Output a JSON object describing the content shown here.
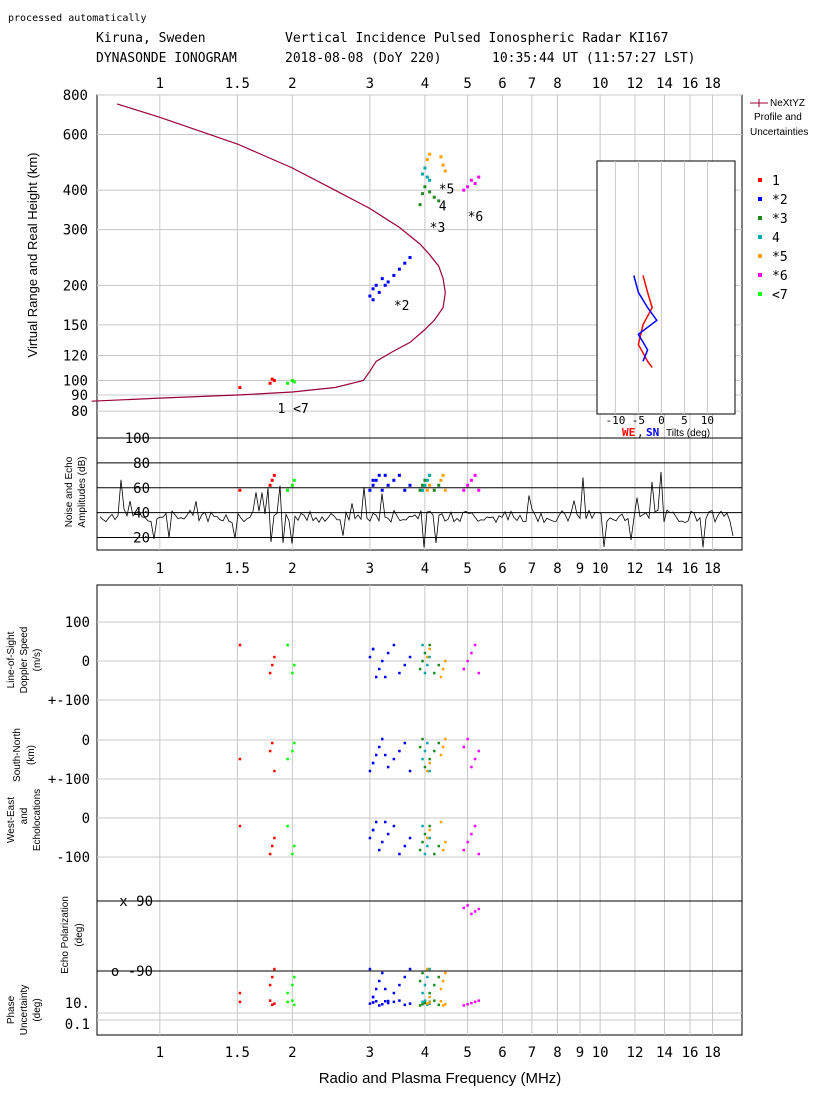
{
  "header": {
    "processed": "processed automatically",
    "station": "Kiruna, Sweden",
    "instrument": "Vertical Incidence Pulsed Ionospheric Radar KI167",
    "kind": "DYNASONDE IONOGRAM",
    "date": "2018-08-08 (DoY 220)",
    "time": "10:35:44 UT (11:57:27 LST)"
  },
  "chart_data": {
    "type": "scatter",
    "xlabel": "Radio and Plasma Frequency (MHz)",
    "x_scale": "log",
    "xlim": [
      0.72,
      21
    ],
    "xticks": [
      "1",
      "1.5",
      "2",
      "3",
      "4",
      "5",
      "6",
      "7",
      "8",
      "10",
      "12",
      "14",
      "16",
      "18"
    ],
    "xticks_lower": [
      "1",
      "1.5",
      "2",
      "3",
      "4",
      "5",
      "6",
      "7",
      "8",
      "9",
      "10",
      "12",
      "14",
      "16",
      "18"
    ],
    "ionogram": {
      "ylabel": "Virtual Range and Real Height (km)",
      "y_scale": "log",
      "ylim": [
        75,
        800
      ],
      "yticks": [
        "800",
        "600",
        "400",
        "300",
        "200",
        "150",
        "120",
        "100",
        "90",
        "80"
      ],
      "profile_name": "NeXtYZ",
      "profile_note1": "Profile and",
      "profile_note2": "Uncertainties",
      "profile": [
        [
          0.8,
          750
        ],
        [
          1.0,
          680
        ],
        [
          1.5,
          560
        ],
        [
          2.0,
          470
        ],
        [
          2.5,
          400
        ],
        [
          3.0,
          350
        ],
        [
          3.5,
          305
        ],
        [
          3.9,
          270
        ],
        [
          4.1,
          250
        ],
        [
          4.3,
          230
        ],
        [
          4.4,
          210
        ],
        [
          4.45,
          190
        ],
        [
          4.4,
          170
        ],
        [
          4.2,
          155
        ],
        [
          4.0,
          145
        ],
        [
          3.7,
          132
        ],
        [
          3.4,
          124
        ],
        [
          3.1,
          115
        ],
        [
          3.0,
          107
        ],
        [
          2.9,
          100
        ],
        [
          2.5,
          95
        ],
        [
          2.0,
          92
        ],
        [
          1.5,
          90
        ],
        [
          1.0,
          88
        ],
        [
          0.7,
          86
        ]
      ],
      "echoes": [
        {
          "name": "1",
          "label": "1",
          "color": "#ff0000",
          "points": [
            [
              1.52,
              95
            ],
            [
              1.78,
              98
            ],
            [
              1.8,
              101
            ],
            [
              1.82,
              100
            ]
          ]
        },
        {
          "name": "*2",
          "label": "*2",
          "color": "#0000ff",
          "points": [
            [
              3.0,
              185
            ],
            [
              3.05,
              195
            ],
            [
              3.1,
              200
            ],
            [
              3.15,
              190
            ],
            [
              3.2,
              210
            ],
            [
              3.3,
              205
            ],
            [
              3.4,
              215
            ],
            [
              3.5,
              225
            ],
            [
              3.6,
              235
            ],
            [
              3.7,
              245
            ],
            [
              3.05,
              180
            ],
            [
              3.25,
              200
            ]
          ]
        },
        {
          "name": "*3",
          "label": "*3",
          "color": "#1e8a1e",
          "points": [
            [
              3.9,
              360
            ],
            [
              3.95,
              390
            ],
            [
              4.0,
              410
            ],
            [
              4.1,
              395
            ],
            [
              4.2,
              380
            ],
            [
              4.3,
              370
            ]
          ]
        },
        {
          "name": "4",
          "label": "4",
          "color": "#00aaaa",
          "points": [
            [
              3.95,
              450
            ],
            [
              4.0,
              470
            ],
            [
              4.05,
              440
            ],
            [
              4.1,
              430
            ]
          ]
        },
        {
          "name": "*5",
          "label": "*5",
          "color": "#ffa000",
          "points": [
            [
              4.05,
              500
            ],
            [
              4.1,
              520
            ],
            [
              4.35,
              510
            ],
            [
              4.4,
              480
            ],
            [
              4.45,
              460
            ]
          ]
        },
        {
          "name": "*6",
          "label": "*6",
          "color": "#ff00ff",
          "points": [
            [
              4.9,
              400
            ],
            [
              5.0,
              410
            ],
            [
              5.1,
              430
            ],
            [
              5.2,
              420
            ],
            [
              5.3,
              440
            ]
          ]
        },
        {
          "name": "<7",
          "label": "<7",
          "color": "#00ff00",
          "points": [
            [
              1.95,
              98
            ],
            [
              2.0,
              100
            ],
            [
              2.02,
              99
            ]
          ]
        }
      ],
      "annotations": [
        {
          "text": "*5",
          "x": 4.3,
          "y": 390
        },
        {
          "text": "4",
          "x": 4.3,
          "y": 345
        },
        {
          "text": "*3",
          "x": 4.1,
          "y": 295
        },
        {
          "text": "*6",
          "x": 5.0,
          "y": 320
        },
        {
          "text": "*2",
          "x": 3.4,
          "y": 167
        },
        {
          "text": "1 <7",
          "x": 1.85,
          "y": 79
        }
      ]
    },
    "tilts": {
      "xlabel": "Tilts (deg)",
      "legend_we": "WE",
      "legend_sep": ",",
      "legend_sn": "SN",
      "xticks": [
        "-10",
        "-5",
        "0",
        "5",
        "10"
      ],
      "xlim": [
        -14,
        16
      ],
      "we": [
        [
          -4,
          215
        ],
        [
          -3,
          190
        ],
        [
          -2,
          170
        ],
        [
          -4,
          150
        ],
        [
          -5,
          130
        ],
        [
          -3,
          115
        ],
        [
          -2,
          110
        ]
      ],
      "sn": [
        [
          -6,
          215
        ],
        [
          -5,
          190
        ],
        [
          -3,
          170
        ],
        [
          -1,
          155
        ],
        [
          -5,
          140
        ],
        [
          -3,
          125
        ],
        [
          -4,
          115
        ]
      ]
    },
    "amplitude": {
      "ylabel_line1": "Noise and Echo",
      "ylabel_line2": "Amplitudes (dB)",
      "yticks": [
        "100",
        "80",
        "60",
        "40",
        "20"
      ],
      "ylim": [
        10,
        100
      ]
    },
    "doppler": {
      "label1": "Line-of-Sight",
      "label2": "Doppler Speed",
      "label3": "(m/s)",
      "ticks": [
        "100",
        "0",
        "+-100"
      ],
      "ylim": [
        -150,
        150
      ]
    },
    "echolocation": {
      "label1": "South-North",
      "label2": "(km)",
      "label3": "and",
      "label4": "West-East",
      "label5": "Echolocations",
      "sn_ticks": [
        "0",
        "+-100"
      ],
      "we_ticks": [
        "0",
        "-100"
      ]
    },
    "polarization": {
      "label1": "Echo Polarization",
      "label2": "(deg)",
      "ticks": [
        "x 90",
        "o -90"
      ]
    },
    "phase": {
      "label1": "Phase",
      "label2": "Uncertainty",
      "label3": "(deg)",
      "ticks": [
        "10.",
        "0.1"
      ]
    }
  }
}
